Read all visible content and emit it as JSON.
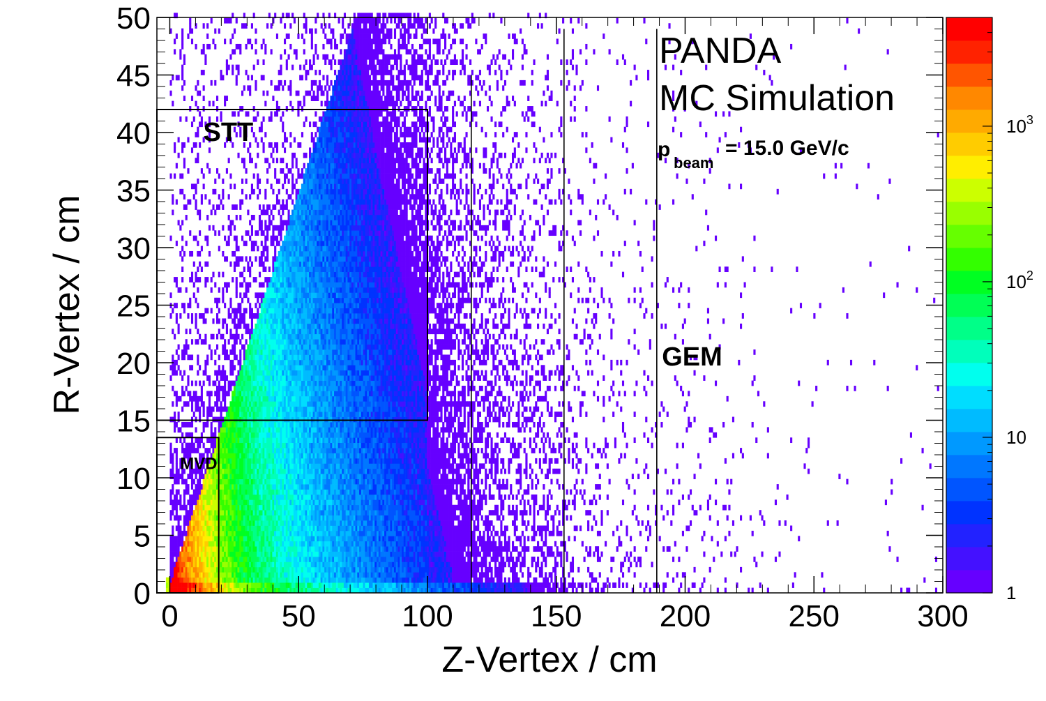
{
  "chart_data": {
    "type": "heatmap",
    "title": "",
    "xlabel": "Z-Vertex / cm",
    "ylabel": "R-Vertex / cm",
    "xlim": [
      -5,
      300
    ],
    "ylim": [
      0,
      50
    ],
    "x_ticks": [
      "0",
      "50",
      "100",
      "150",
      "200",
      "250",
      "300"
    ],
    "y_ticks": [
      "0",
      "5",
      "10",
      "15",
      "20",
      "25",
      "30",
      "35",
      "40",
      "45",
      "50"
    ],
    "z_scale": "log",
    "zlim": [
      1,
      5000
    ],
    "palette_labels": [
      {
        "base": "1",
        "exp": ""
      },
      {
        "base": "10",
        "exp": ""
      },
      {
        "base": "10",
        "exp": "2"
      },
      {
        "base": "10",
        "exp": "3"
      }
    ],
    "palette_colors": [
      "#6600ff",
      "#4411ff",
      "#2222ff",
      "#0033ff",
      "#0055ff",
      "#0077ff",
      "#0099ff",
      "#00bbff",
      "#00ddff",
      "#00ffee",
      "#00ffbb",
      "#00ff88",
      "#00ff55",
      "#00ff22",
      "#33ff00",
      "#66ff00",
      "#99ff00",
      "#ccff00",
      "#ffee00",
      "#ffcc00",
      "#ffaa00",
      "#ff8800",
      "#ff5500",
      "#ff2200",
      "#ff0000"
    ],
    "region_boxes": [
      {
        "name": "STT",
        "z": [
          -5,
          100
        ],
        "r": [
          15,
          42
        ]
      },
      {
        "name": "MVD",
        "z": [
          -5,
          19
        ],
        "r": [
          0,
          13.5
        ]
      }
    ],
    "detector_lines_z": [
      117,
      153,
      189
    ],
    "regions": [
      {
        "label": "STT",
        "z": 13,
        "r": 40
      },
      {
        "label": "MVD",
        "z": 4,
        "r": 11.5
      },
      {
        "label": "GEM",
        "z": 191,
        "r": 20.5
      }
    ],
    "annotations": {
      "experiment": "PANDA",
      "simulation": "MC Simulation",
      "beam_p": "p",
      "beam_sub": "beam",
      "beam_value": "= 15.0 GeV/c"
    }
  }
}
